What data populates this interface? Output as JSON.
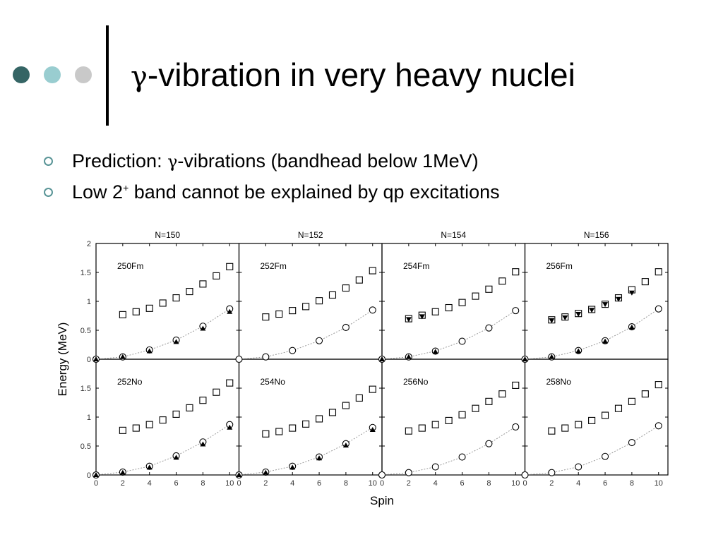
{
  "slide": {
    "title_symbol": "γ",
    "title_text": "-vibration in very heavy nuclei",
    "bullets": [
      {
        "prefix": "Prediction: ",
        "symbol": "γ",
        "suffix": "-vibrations (bandhead below 1MeV)"
      },
      {
        "prefix": "Low 2",
        "sup": "+",
        "suffix": " band cannot be explained by qp excitations"
      }
    ],
    "colors": {
      "dot1": "#356565",
      "dot2": "#99cdd0",
      "dot3": "#c9c9c9",
      "bullet_ring": "#5a9597"
    }
  },
  "chart_data": {
    "type": "scatter",
    "xlabel": "Spin",
    "ylabel": "Energy (MeV)",
    "xlim": [
      0,
      10.7
    ],
    "ylim": [
      0,
      2
    ],
    "x_ticks": [
      "0",
      "2",
      "4",
      "6",
      "8",
      "10"
    ],
    "y_ticks": [
      "0",
      "0.5",
      "1",
      "1.5",
      "2"
    ],
    "grid": false,
    "columns": [
      "N=150",
      "N=152",
      "N=154",
      "N=156"
    ],
    "panels": [
      {
        "nucleus": "250Fm",
        "gamma_band": [
          [
            2,
            0.77
          ],
          [
            3,
            0.82
          ],
          [
            4,
            0.88
          ],
          [
            5,
            0.97
          ],
          [
            6,
            1.06
          ],
          [
            7,
            1.17
          ],
          [
            8,
            1.3
          ],
          [
            9,
            1.44
          ],
          [
            10,
            1.6
          ]
        ],
        "gamma_band_calc": [],
        "ground_band": [
          [
            0,
            0
          ],
          [
            2,
            0.04
          ],
          [
            4,
            0.16
          ],
          [
            6,
            0.33
          ],
          [
            8,
            0.57
          ],
          [
            10,
            0.87
          ]
        ],
        "ground_band_calc": [
          [
            0,
            0
          ],
          [
            2,
            0.04
          ],
          [
            4,
            0.14
          ],
          [
            6,
            0.3
          ],
          [
            8,
            0.53
          ],
          [
            10,
            0.82
          ]
        ]
      },
      {
        "nucleus": "252Fm",
        "gamma_band": [
          [
            2,
            0.73
          ],
          [
            3,
            0.78
          ],
          [
            4,
            0.84
          ],
          [
            5,
            0.91
          ],
          [
            6,
            1.01
          ],
          [
            7,
            1.11
          ],
          [
            8,
            1.23
          ],
          [
            9,
            1.37
          ],
          [
            10,
            1.53
          ]
        ],
        "gamma_band_calc": [],
        "ground_band": [
          [
            0,
            0
          ],
          [
            2,
            0.04
          ],
          [
            4,
            0.15
          ],
          [
            6,
            0.32
          ],
          [
            8,
            0.55
          ],
          [
            10,
            0.85
          ]
        ],
        "ground_band_calc": []
      },
      {
        "nucleus": "254Fm",
        "gamma_band": [
          [
            2,
            0.7
          ],
          [
            3,
            0.76
          ],
          [
            4,
            0.82
          ],
          [
            5,
            0.89
          ],
          [
            6,
            0.98
          ],
          [
            7,
            1.09
          ],
          [
            8,
            1.21
          ],
          [
            9,
            1.35
          ],
          [
            10,
            1.51
          ]
        ],
        "gamma_band_calc": [
          [
            2,
            0.69
          ],
          [
            3,
            0.74
          ]
        ],
        "ground_band": [
          [
            0,
            0
          ],
          [
            2,
            0.04
          ],
          [
            4,
            0.14
          ],
          [
            6,
            0.31
          ],
          [
            8,
            0.54
          ],
          [
            10,
            0.84
          ]
        ],
        "ground_band_calc": [
          [
            0,
            0
          ],
          [
            2,
            0.04
          ],
          [
            4,
            0.13
          ]
        ]
      },
      {
        "nucleus": "256Fm",
        "gamma_band": [
          [
            2,
            0.68
          ],
          [
            3,
            0.73
          ],
          [
            4,
            0.79
          ],
          [
            5,
            0.86
          ],
          [
            6,
            0.95
          ],
          [
            7,
            1.06
          ],
          [
            8,
            1.2
          ],
          [
            9,
            1.34
          ],
          [
            10,
            1.51
          ]
        ],
        "gamma_band_calc": [
          [
            2,
            0.67
          ],
          [
            3,
            0.72
          ],
          [
            4,
            0.78
          ],
          [
            5,
            0.85
          ],
          [
            6,
            0.95
          ],
          [
            7,
            1.04
          ],
          [
            8,
            1.15
          ]
        ],
        "ground_band": [
          [
            0,
            0
          ],
          [
            2,
            0.04
          ],
          [
            4,
            0.15
          ],
          [
            6,
            0.32
          ],
          [
            8,
            0.56
          ],
          [
            10,
            0.87
          ]
        ],
        "ground_band_calc": [
          [
            0,
            0
          ],
          [
            2,
            0.04
          ],
          [
            4,
            0.14
          ],
          [
            6,
            0.31
          ],
          [
            8,
            0.55
          ]
        ]
      },
      {
        "nucleus": "252No",
        "gamma_band": [
          [
            2,
            0.77
          ],
          [
            3,
            0.81
          ],
          [
            4,
            0.87
          ],
          [
            5,
            0.95
          ],
          [
            6,
            1.05
          ],
          [
            7,
            1.16
          ],
          [
            8,
            1.29
          ],
          [
            9,
            1.43
          ],
          [
            10,
            1.59
          ]
        ],
        "gamma_band_calc": [],
        "ground_band": [
          [
            0,
            0
          ],
          [
            2,
            0.05
          ],
          [
            4,
            0.15
          ],
          [
            6,
            0.33
          ],
          [
            8,
            0.57
          ],
          [
            10,
            0.87
          ]
        ],
        "ground_band_calc": [
          [
            0,
            0
          ],
          [
            2,
            0.04
          ],
          [
            4,
            0.13
          ],
          [
            6,
            0.3
          ],
          [
            8,
            0.53
          ],
          [
            10,
            0.82
          ]
        ]
      },
      {
        "nucleus": "254No",
        "gamma_band": [
          [
            2,
            0.71
          ],
          [
            3,
            0.75
          ],
          [
            4,
            0.81
          ],
          [
            5,
            0.88
          ],
          [
            6,
            0.97
          ],
          [
            7,
            1.08
          ],
          [
            8,
            1.2
          ],
          [
            9,
            1.33
          ],
          [
            10,
            1.48
          ]
        ],
        "gamma_band_calc": [],
        "ground_band": [
          [
            0,
            0
          ],
          [
            2,
            0.05
          ],
          [
            4,
            0.15
          ],
          [
            6,
            0.31
          ],
          [
            8,
            0.54
          ],
          [
            10,
            0.82
          ]
        ],
        "ground_band_calc": [
          [
            0,
            0
          ],
          [
            2,
            0.04
          ],
          [
            4,
            0.13
          ],
          [
            6,
            0.29
          ],
          [
            8,
            0.51
          ],
          [
            10,
            0.78
          ]
        ]
      },
      {
        "nucleus": "256No",
        "gamma_band": [
          [
            2,
            0.76
          ],
          [
            3,
            0.81
          ],
          [
            4,
            0.87
          ],
          [
            5,
            0.94
          ],
          [
            6,
            1.04
          ],
          [
            7,
            1.15
          ],
          [
            8,
            1.27
          ],
          [
            9,
            1.4
          ],
          [
            10,
            1.55
          ]
        ],
        "gamma_band_calc": [],
        "ground_band": [
          [
            0,
            0
          ],
          [
            2,
            0.04
          ],
          [
            4,
            0.14
          ],
          [
            6,
            0.31
          ],
          [
            8,
            0.54
          ],
          [
            10,
            0.83
          ]
        ],
        "ground_band_calc": []
      },
      {
        "nucleus": "258No",
        "gamma_band": [
          [
            2,
            0.76
          ],
          [
            3,
            0.81
          ],
          [
            4,
            0.87
          ],
          [
            5,
            0.94
          ],
          [
            6,
            1.03
          ],
          [
            7,
            1.15
          ],
          [
            8,
            1.27
          ],
          [
            9,
            1.4
          ],
          [
            10,
            1.56
          ]
        ],
        "gamma_band_calc": [],
        "ground_band": [
          [
            0,
            0
          ],
          [
            2,
            0.04
          ],
          [
            4,
            0.14
          ],
          [
            6,
            0.32
          ],
          [
            8,
            0.56
          ],
          [
            10,
            0.85
          ]
        ],
        "ground_band_calc": []
      }
    ]
  }
}
